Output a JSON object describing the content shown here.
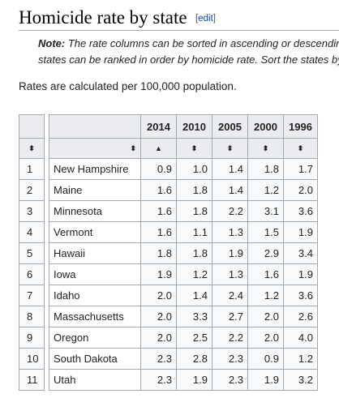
{
  "section": {
    "title": "Homicide rate by state",
    "edit_open": "[",
    "edit_label": "edit",
    "edit_close": "]"
  },
  "note": {
    "label": "Note:",
    "line1": " The rate columns can be sorted in ascending or descending order.",
    "line2": "states can be ranked in order by homicide rate. Sort the states by clicking."
  },
  "intro": "Rates are calculated per 100,000 population.",
  "table": {
    "columns": [
      "2014",
      "2010",
      "2005",
      "2000",
      "1996"
    ],
    "sort_icons": {
      "rank": "⬍",
      "state": "⬍",
      "active": "▲",
      "default": "⬍"
    },
    "rows": [
      {
        "rank": "1",
        "state": "New Hampshire",
        "values": [
          "0.9",
          "1.0",
          "1.4",
          "1.8",
          "1.7"
        ]
      },
      {
        "rank": "2",
        "state": "Maine",
        "values": [
          "1.6",
          "1.8",
          "1.4",
          "1.2",
          "2.0"
        ]
      },
      {
        "rank": "3",
        "state": "Minnesota",
        "values": [
          "1.6",
          "1.8",
          "2.2",
          "3.1",
          "3.6"
        ]
      },
      {
        "rank": "4",
        "state": "Vermont",
        "values": [
          "1.6",
          "1.1",
          "1.3",
          "1.5",
          "1.9"
        ]
      },
      {
        "rank": "5",
        "state": "Hawaii",
        "values": [
          "1.8",
          "1.8",
          "1.9",
          "2.9",
          "3.4"
        ]
      },
      {
        "rank": "6",
        "state": "Iowa",
        "values": [
          "1.9",
          "1.2",
          "1.3",
          "1.6",
          "1.9"
        ]
      },
      {
        "rank": "7",
        "state": "Idaho",
        "values": [
          "2.0",
          "1.4",
          "2.4",
          "1.2",
          "3.6"
        ]
      },
      {
        "rank": "8",
        "state": "Massachusetts",
        "values": [
          "2.0",
          "3.3",
          "2.7",
          "2.0",
          "2.6"
        ]
      },
      {
        "rank": "9",
        "state": "Oregon",
        "values": [
          "2.0",
          "2.5",
          "2.2",
          "2.0",
          "4.0"
        ]
      },
      {
        "rank": "10",
        "state": "South Dakota",
        "values": [
          "2.3",
          "2.8",
          "2.3",
          "0.9",
          "1.2"
        ]
      },
      {
        "rank": "11",
        "state": "Utah",
        "values": [
          "2.3",
          "1.9",
          "2.3",
          "1.9",
          "3.2"
        ]
      }
    ]
  }
}
